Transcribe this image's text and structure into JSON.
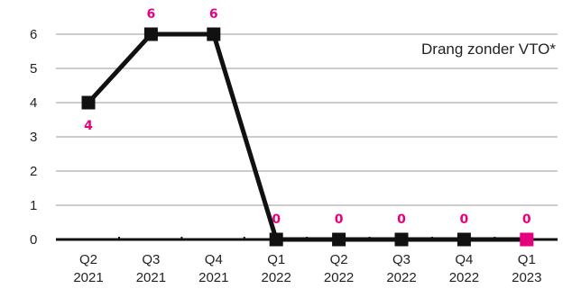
{
  "chart_data": {
    "type": "line",
    "categories": [
      [
        "Q2",
        "2021"
      ],
      [
        "Q3",
        "2021"
      ],
      [
        "Q4",
        "2021"
      ],
      [
        "Q1",
        "2022"
      ],
      [
        "Q2",
        "2022"
      ],
      [
        "Q3",
        "2022"
      ],
      [
        "Q4",
        "2022"
      ],
      [
        "Q1",
        "2023"
      ]
    ],
    "series": [
      {
        "name": "Drang zonder VTO*",
        "values": [
          4,
          6,
          6,
          0,
          0,
          0,
          0,
          0
        ]
      }
    ],
    "data_labels": [
      "4",
      "6",
      "6",
      "0",
      "0",
      "0",
      "0",
      "0"
    ],
    "y_ticks": [
      "0",
      "1",
      "2",
      "3",
      "4",
      "5",
      "6"
    ],
    "ylim": [
      0,
      6
    ],
    "grid": true,
    "legend_position": "top-right",
    "colors": {
      "line": "#111111",
      "marker": "#111111",
      "highlight_marker": "#e6007e",
      "data_label": "#e6007e",
      "grid": "#9a9a9a",
      "text": "#222222"
    }
  }
}
